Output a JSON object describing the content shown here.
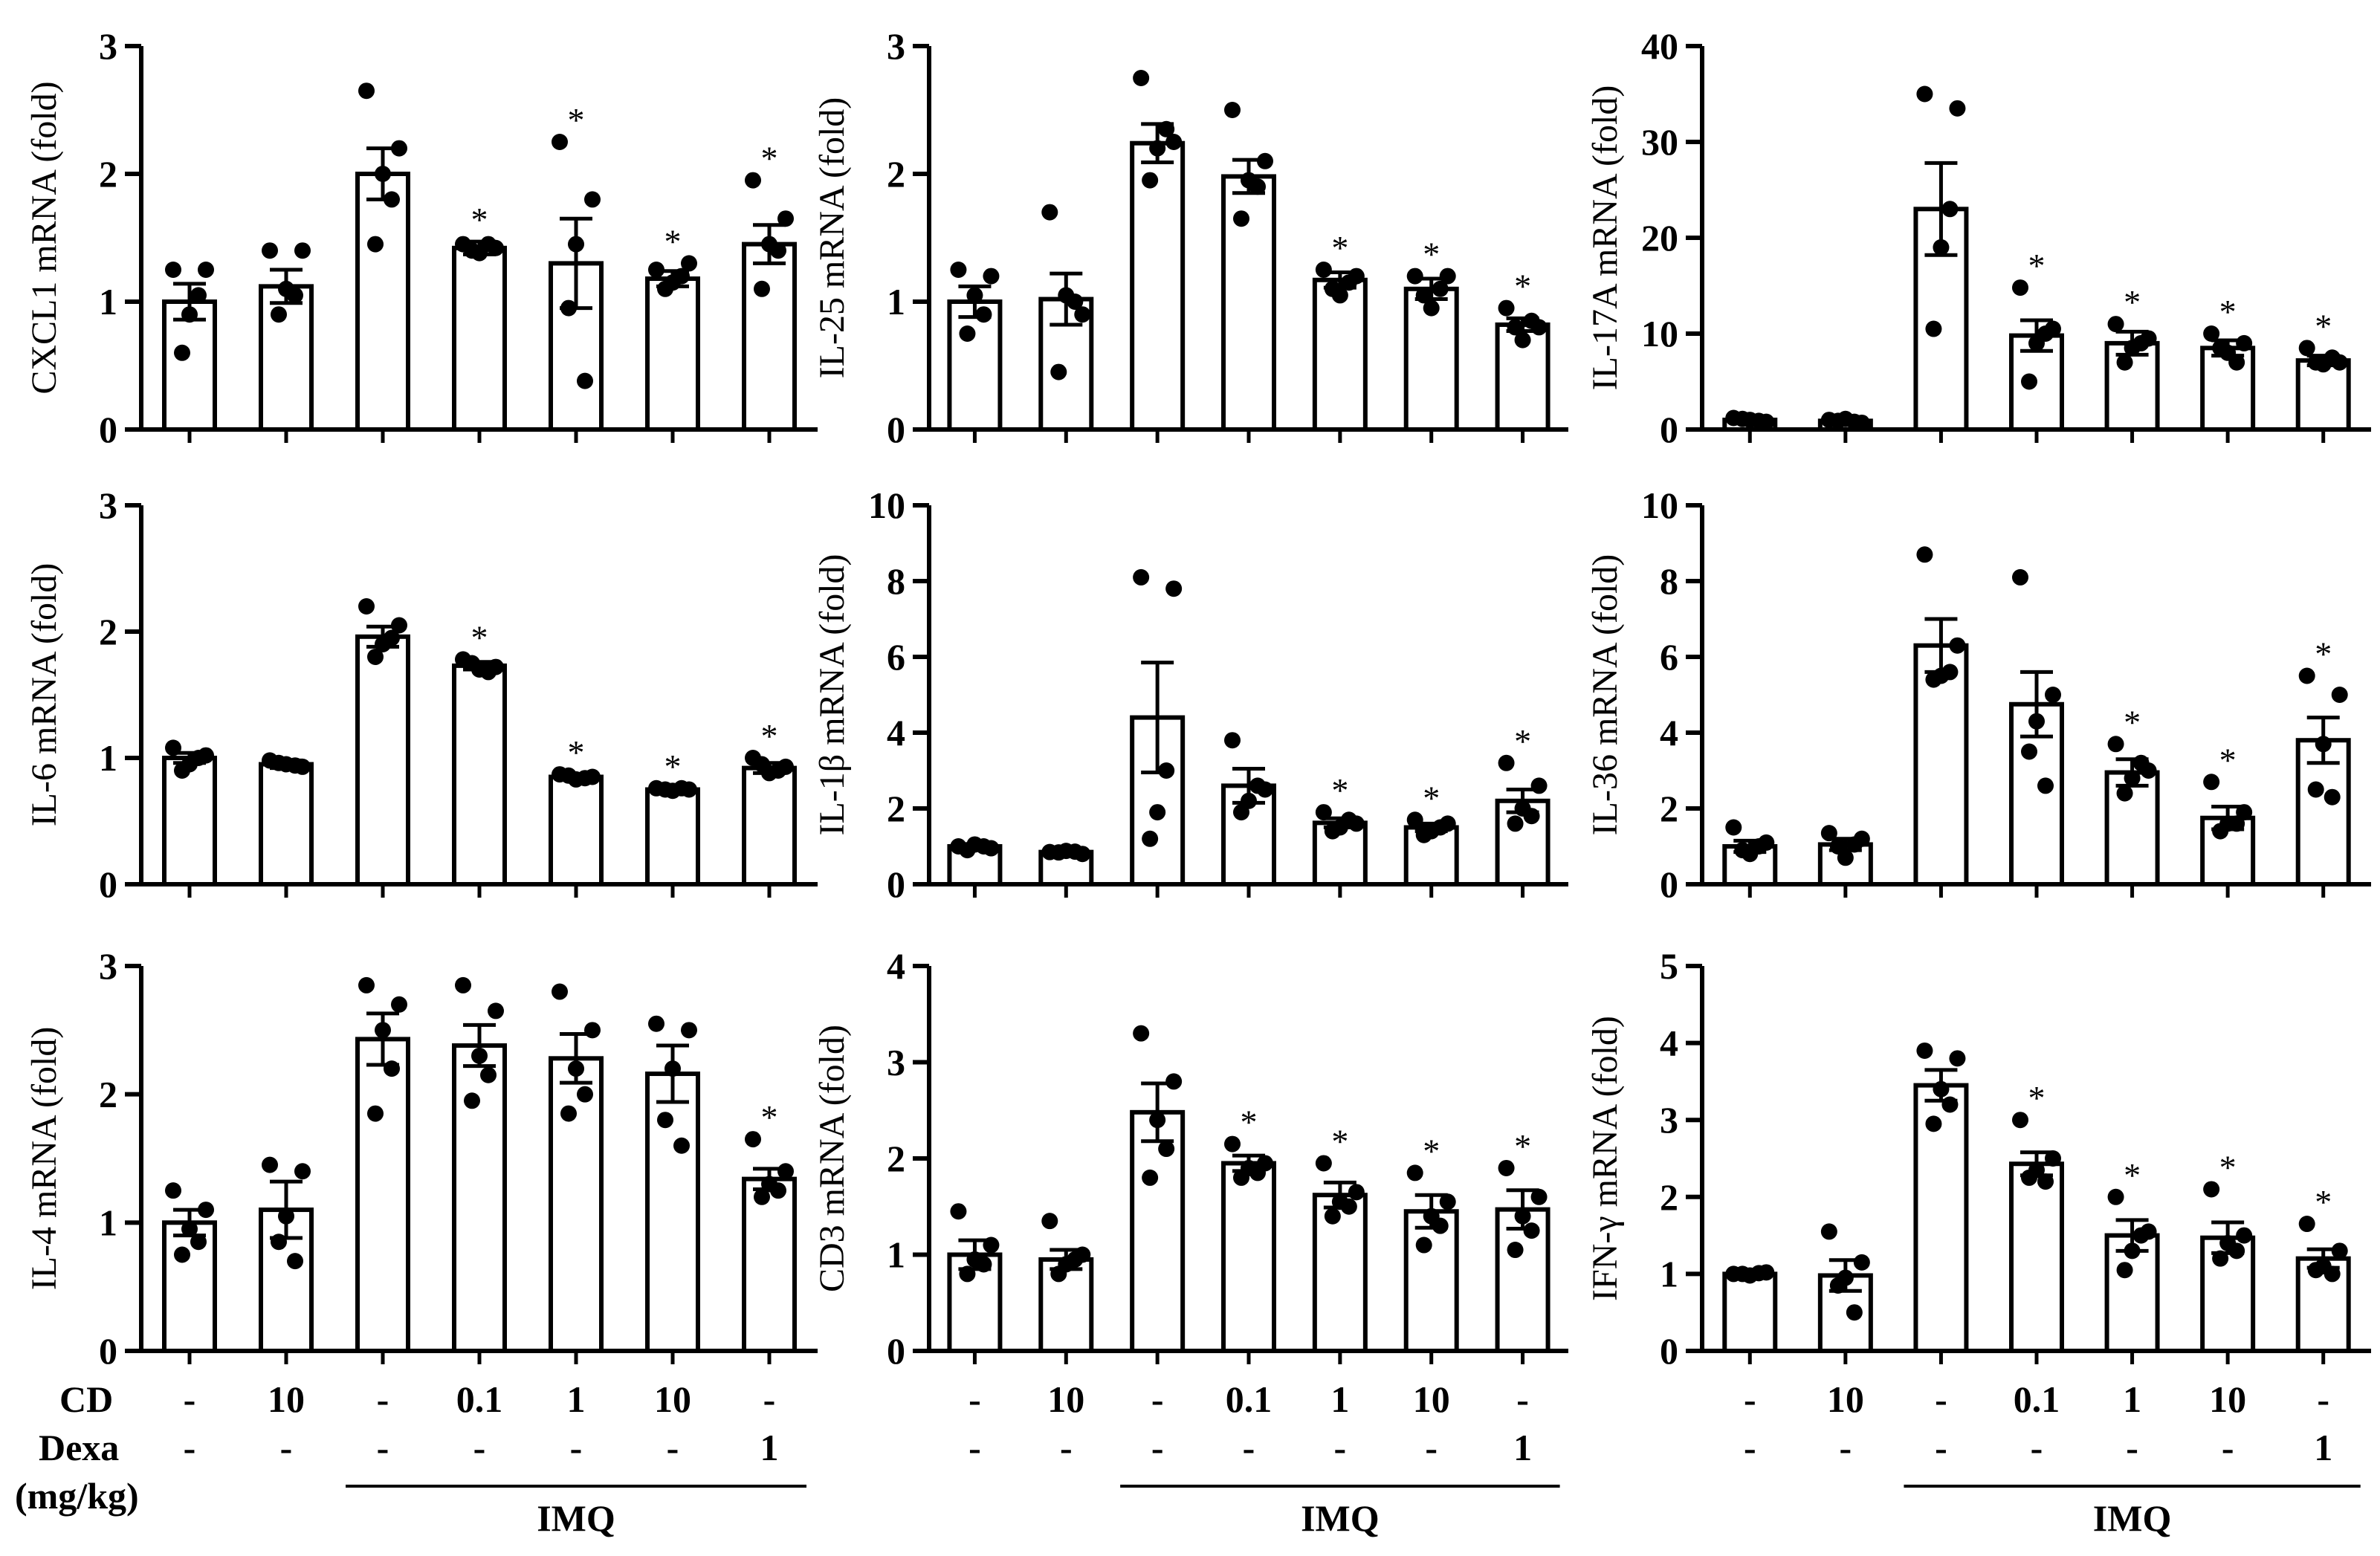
{
  "colors": {
    "ink": "#000000",
    "bar_fill": "#ffffff"
  },
  "x_rows": {
    "cd_label": "CD",
    "dexa_label": "Dexa",
    "unit_label": "(mg/kg)",
    "cd": [
      "-",
      "10",
      "-",
      "0.1",
      "1",
      "10",
      "-"
    ],
    "dexa": [
      "-",
      "-",
      "-",
      "-",
      "-",
      "-",
      "1"
    ],
    "group_label": "IMQ"
  },
  "chart_data": [
    {
      "type": "bar",
      "ylabel": "CXCL1 mRNA (fold)",
      "ylim": [
        0,
        3
      ],
      "yticks": [
        "0",
        "1",
        "2",
        "3"
      ],
      "values": [
        1.0,
        1.12,
        2.0,
        1.42,
        1.3,
        1.18,
        1.45
      ],
      "errors": [
        0.14,
        0.13,
        0.2,
        0.05,
        0.35,
        0.06,
        0.15
      ],
      "significant": [
        false,
        false,
        false,
        true,
        true,
        true,
        true
      ],
      "points": [
        [
          1.25,
          1.25,
          0.9,
          0.6,
          1.05
        ],
        [
          1.4,
          1.4,
          1.1,
          0.9,
          1.05
        ],
        [
          2.65,
          2.2,
          2.0,
          1.45,
          1.8
        ],
        [
          1.45,
          1.42,
          1.38,
          1.4,
          1.45
        ],
        [
          2.25,
          1.8,
          1.45,
          0.95,
          0.38
        ],
        [
          1.25,
          1.3,
          1.15,
          1.1,
          1.2
        ],
        [
          1.95,
          1.65,
          1.45,
          1.1,
          1.4
        ]
      ]
    },
    {
      "type": "bar",
      "ylabel": "IL-25 mRNA (fold)",
      "ylim": [
        0,
        3
      ],
      "yticks": [
        "0",
        "1",
        "2",
        "3"
      ],
      "values": [
        1.0,
        1.02,
        2.24,
        1.98,
        1.17,
        1.1,
        0.82
      ],
      "errors": [
        0.12,
        0.2,
        0.15,
        0.13,
        0.06,
        0.08,
        0.05
      ],
      "significant": [
        false,
        false,
        false,
        false,
        true,
        true,
        true
      ],
      "points": [
        [
          1.25,
          1.2,
          1.05,
          0.75,
          0.9
        ],
        [
          1.7,
          0.9,
          1.05,
          0.45,
          1.0
        ],
        [
          2.75,
          2.25,
          2.2,
          1.95,
          2.35
        ],
        [
          2.5,
          2.1,
          1.95,
          1.65,
          1.9
        ],
        [
          1.25,
          1.2,
          1.05,
          1.1,
          1.15
        ],
        [
          1.2,
          1.2,
          0.95,
          1.05,
          1.1
        ],
        [
          0.95,
          0.8,
          0.7,
          0.8,
          0.85
        ]
      ]
    },
    {
      "type": "bar",
      "ylabel": "IL-17A mRNA (fold)",
      "ylim": [
        0,
        40
      ],
      "yticks": [
        "0",
        "10",
        "20",
        "30",
        "40"
      ],
      "values": [
        1.0,
        0.9,
        23.0,
        9.8,
        9.0,
        8.5,
        7.2
      ],
      "errors": [
        0.2,
        0.2,
        4.8,
        1.6,
        1.2,
        0.8,
        0.5
      ],
      "significant": [
        false,
        false,
        false,
        true,
        true,
        true,
        true
      ],
      "points": [
        [
          1.2,
          0.8,
          1.0,
          1.1,
          0.9
        ],
        [
          1.0,
          0.7,
          1.1,
          0.9,
          0.8
        ],
        [
          35.0,
          33.5,
          19.0,
          10.5,
          23.0
        ],
        [
          14.8,
          10.5,
          9.0,
          5.0,
          10.0
        ],
        [
          11.0,
          9.5,
          8.5,
          7.0,
          9.0
        ],
        [
          10.0,
          9.0,
          8.0,
          8.5,
          7.0
        ],
        [
          8.5,
          7.0,
          6.8,
          7.0,
          7.5
        ]
      ]
    },
    {
      "type": "bar",
      "ylabel": "IL-6 mRNA (fold)",
      "ylim": [
        0,
        3
      ],
      "yticks": [
        "0",
        "1",
        "2",
        "3"
      ],
      "values": [
        1.0,
        0.95,
        1.96,
        1.73,
        0.85,
        0.75,
        0.92
      ],
      "errors": [
        0.04,
        0.03,
        0.08,
        0.03,
        0.02,
        0.01,
        0.04
      ],
      "significant": [
        false,
        false,
        false,
        true,
        true,
        true,
        true
      ],
      "points": [
        [
          1.08,
          1.02,
          0.95,
          0.9,
          1.0
        ],
        [
          0.98,
          0.93,
          0.95,
          0.96,
          0.94
        ],
        [
          2.2,
          2.05,
          1.9,
          1.8,
          1.95
        ],
        [
          1.78,
          1.72,
          1.7,
          1.75,
          1.68
        ],
        [
          0.87,
          0.85,
          0.83,
          0.86,
          0.84
        ],
        [
          0.76,
          0.75,
          0.74,
          0.75,
          0.76
        ],
        [
          1.0,
          0.93,
          0.88,
          0.95,
          0.9
        ]
      ]
    },
    {
      "type": "bar",
      "ylabel": "IL-1β mRNA (fold)",
      "ylim": [
        0,
        10
      ],
      "yticks": [
        "0",
        "2",
        "4",
        "6",
        "8",
        "10"
      ],
      "values": [
        1.0,
        0.85,
        4.4,
        2.6,
        1.62,
        1.5,
        2.2
      ],
      "errors": [
        0.05,
        0.03,
        1.45,
        0.45,
        0.12,
        0.1,
        0.3
      ],
      "significant": [
        false,
        false,
        false,
        false,
        true,
        true,
        true
      ],
      "points": [
        [
          1.0,
          0.95,
          1.05,
          0.9,
          1.0
        ],
        [
          0.85,
          0.8,
          0.88,
          0.84,
          0.86
        ],
        [
          8.1,
          7.8,
          1.9,
          1.2,
          3.0
        ],
        [
          3.8,
          2.5,
          2.2,
          1.9,
          2.6
        ],
        [
          1.9,
          1.6,
          1.5,
          1.4,
          1.7
        ],
        [
          1.7,
          1.6,
          1.4,
          1.3,
          1.5
        ],
        [
          3.2,
          2.6,
          2.0,
          1.6,
          1.8
        ]
      ]
    },
    {
      "type": "bar",
      "ylabel": "IL-36 mRNA (fold)",
      "ylim": [
        0,
        10
      ],
      "yticks": [
        "0",
        "2",
        "4",
        "6",
        "8",
        "10"
      ],
      "values": [
        1.0,
        1.05,
        6.3,
        4.75,
        2.95,
        1.75,
        3.8
      ],
      "errors": [
        0.15,
        0.15,
        0.7,
        0.85,
        0.35,
        0.3,
        0.6
      ],
      "significant": [
        false,
        false,
        false,
        false,
        true,
        true,
        true
      ],
      "points": [
        [
          1.5,
          1.1,
          0.8,
          0.9,
          1.0
        ],
        [
          1.35,
          1.2,
          0.7,
          1.0,
          1.05
        ],
        [
          8.7,
          6.3,
          5.5,
          5.4,
          5.6
        ],
        [
          8.1,
          5.0,
          4.3,
          3.5,
          2.6
        ],
        [
          3.7,
          3.0,
          2.8,
          2.4,
          3.2
        ],
        [
          2.7,
          1.9,
          1.6,
          1.4,
          1.6
        ],
        [
          5.5,
          5.0,
          3.7,
          2.5,
          2.3
        ]
      ]
    },
    {
      "type": "bar",
      "ylabel": "IL-4 mRNA (fold)",
      "ylim": [
        0,
        3
      ],
      "yticks": [
        "0",
        "1",
        "2",
        "3"
      ],
      "values": [
        1.0,
        1.1,
        2.43,
        2.38,
        2.28,
        2.16,
        1.34
      ],
      "errors": [
        0.1,
        0.22,
        0.2,
        0.16,
        0.19,
        0.22,
        0.08
      ],
      "significant": [
        false,
        false,
        false,
        false,
        false,
        false,
        true
      ],
      "points": [
        [
          1.25,
          1.1,
          0.95,
          0.75,
          0.85
        ],
        [
          1.45,
          1.4,
          1.05,
          0.85,
          0.7
        ],
        [
          2.85,
          2.7,
          2.5,
          1.85,
          2.2
        ],
        [
          2.85,
          2.65,
          2.3,
          1.95,
          2.15
        ],
        [
          2.8,
          2.5,
          2.2,
          1.85,
          2.0
        ],
        [
          2.55,
          2.5,
          2.2,
          1.8,
          1.6
        ],
        [
          1.65,
          1.4,
          1.3,
          1.2,
          1.25
        ]
      ]
    },
    {
      "type": "bar",
      "ylabel": "CD3 mRNA (fold)",
      "ylim": [
        0,
        4
      ],
      "yticks": [
        "0",
        "1",
        "2",
        "3",
        "4"
      ],
      "values": [
        1.0,
        0.95,
        2.48,
        1.95,
        1.62,
        1.45,
        1.47
      ],
      "errors": [
        0.15,
        0.1,
        0.3,
        0.08,
        0.13,
        0.17,
        0.2
      ],
      "significant": [
        false,
        false,
        false,
        true,
        true,
        true,
        true
      ],
      "points": [
        [
          1.45,
          1.1,
          0.95,
          0.8,
          0.9
        ],
        [
          1.35,
          1.0,
          0.9,
          0.8,
          0.95
        ],
        [
          3.3,
          2.8,
          2.4,
          1.8,
          2.1
        ],
        [
          2.15,
          1.95,
          1.9,
          1.8,
          1.85
        ],
        [
          1.95,
          1.65,
          1.55,
          1.4,
          1.5
        ],
        [
          1.85,
          1.55,
          1.4,
          1.1,
          1.3
        ],
        [
          1.9,
          1.6,
          1.4,
          1.05,
          1.25
        ]
      ]
    },
    {
      "type": "bar",
      "ylabel": "IFN-γ mRNA (fold)",
      "ylim": [
        0,
        5
      ],
      "yticks": [
        "0",
        "1",
        "2",
        "3",
        "4",
        "5"
      ],
      "values": [
        1.0,
        0.98,
        3.45,
        2.43,
        1.5,
        1.47,
        1.2
      ],
      "errors": [
        0.02,
        0.2,
        0.2,
        0.15,
        0.2,
        0.2,
        0.12
      ],
      "significant": [
        false,
        false,
        false,
        true,
        true,
        true,
        true
      ],
      "points": [
        [
          1.0,
          1.02,
          0.98,
          1.0,
          1.01
        ],
        [
          1.55,
          1.15,
          0.95,
          0.85,
          0.5
        ],
        [
          3.9,
          3.8,
          3.4,
          2.95,
          3.2
        ],
        [
          3.0,
          2.5,
          2.35,
          2.25,
          2.2
        ],
        [
          2.0,
          1.55,
          1.3,
          1.05,
          1.5
        ],
        [
          2.1,
          1.5,
          1.4,
          1.2,
          1.3
        ],
        [
          1.65,
          1.3,
          1.1,
          1.05,
          1.0
        ]
      ]
    }
  ]
}
